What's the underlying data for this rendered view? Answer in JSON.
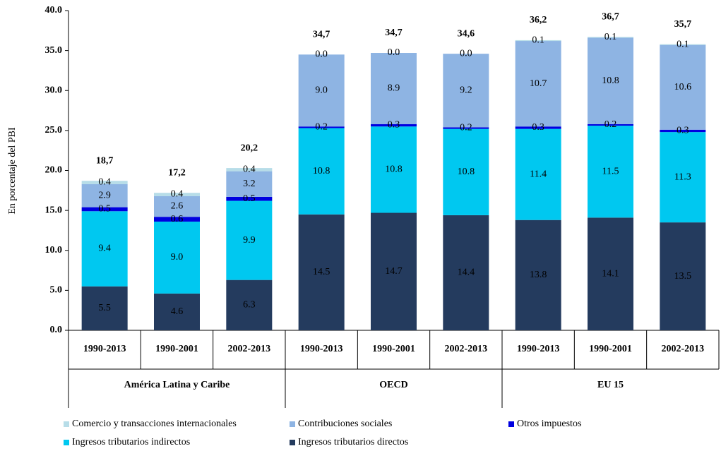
{
  "chart_data": {
    "type": "stacked_bar",
    "y_label": "En porcentaje del PBI",
    "categories": [
      "1990-2013",
      "1990-2001",
      "2002-2013",
      "1990-2013",
      "1990-2001",
      "2002-2013",
      "1990-2013",
      "1990-2001",
      "2002-2013"
    ],
    "groups": [
      "América Latina y Caribe",
      "OECD",
      "EU 15"
    ],
    "ylim": [
      0,
      40
    ],
    "yticks": [
      {
        "value": 0,
        "label": "0.0"
      },
      {
        "value": 5,
        "label": "5.0"
      },
      {
        "value": 10,
        "label": "10.0"
      },
      {
        "value": 15,
        "label": "15.0"
      },
      {
        "value": 20,
        "label": "20.0"
      },
      {
        "value": 25,
        "label": "25.0"
      },
      {
        "value": 30,
        "label": "30.0"
      },
      {
        "value": 35,
        "label": "35.0"
      },
      {
        "value": 40,
        "label": "40.0"
      }
    ],
    "series": [
      {
        "name": "Ingresos tributarios directos",
        "color": "#243b5e",
        "values": [
          5.5,
          4.6,
          6.3,
          14.5,
          14.7,
          14.4,
          13.8,
          14.1,
          13.5
        ],
        "value_labels": [
          "5.5",
          "4.6",
          "6.3",
          "14.5",
          "14.7",
          "14.4",
          "13.8",
          "14.1",
          "13.5"
        ]
      },
      {
        "name": "Ingresos tributarios indirectos",
        "color": "#00c8f0",
        "values": [
          9.4,
          9.0,
          9.9,
          10.8,
          10.8,
          10.8,
          11.4,
          11.5,
          11.3
        ],
        "value_labels": [
          "9.4",
          "9.0",
          "9.9",
          "10.8",
          "10.8",
          "10.8",
          "11.4",
          "11.5",
          "11.3"
        ]
      },
      {
        "name": "Otros impuestos",
        "color": "#0000e0",
        "values": [
          0.5,
          0.6,
          0.5,
          0.2,
          0.3,
          0.2,
          0.3,
          0.2,
          0.3
        ],
        "value_labels": [
          "0.5",
          "0.6",
          "0.5",
          "0.2",
          "0.3",
          "0.2",
          "0.3",
          "0.2",
          "0.3"
        ]
      },
      {
        "name": "Contribuciones sociales",
        "color": "#8eb4e3",
        "values": [
          2.9,
          2.6,
          3.2,
          9.0,
          8.9,
          9.2,
          10.7,
          10.8,
          10.6
        ],
        "value_labels": [
          "2.9",
          "2.6",
          "3.2",
          "9.0",
          "8.9",
          "9.2",
          "10.7",
          "10.8",
          "10.6"
        ]
      },
      {
        "name": "Comercio y transacciones internacionales",
        "color": "#b7dde8",
        "values": [
          0.4,
          0.4,
          0.4,
          0.0,
          0.0,
          0.0,
          0.1,
          0.1,
          0.1
        ],
        "value_labels": [
          "0.4",
          "0.4",
          "0.4",
          "0.0",
          "0.0",
          "0.0",
          "0.1",
          "0.1",
          "0.1"
        ]
      }
    ],
    "total_labels": [
      "18,7",
      "17,2",
      "20,2",
      "34,7",
      "34,7",
      "34,6",
      "36,2",
      "36,7",
      "35,7"
    ]
  }
}
